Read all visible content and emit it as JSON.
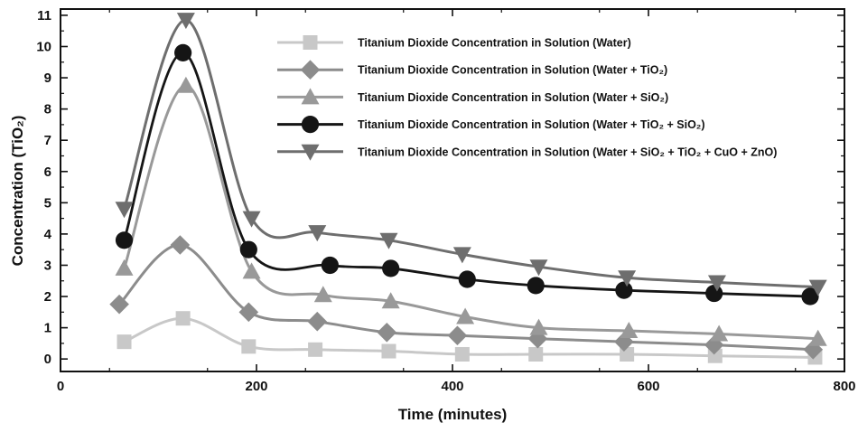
{
  "chart_data": {
    "type": "line",
    "xlabel": "Time (minutes)",
    "ylabel": "Concentration (TiO₂)",
    "xlim": [
      0,
      800
    ],
    "ylim": [
      -0.4,
      11.2
    ],
    "xticks": [
      0,
      200,
      400,
      600,
      800
    ],
    "yticks": [
      0,
      1,
      2,
      3,
      4,
      5,
      6,
      7,
      8,
      9,
      10,
      11
    ],
    "grid": false,
    "legend_position": "top-right",
    "series": [
      {
        "name": "Titanium Dioxide Concentration in Solution (Water)",
        "color": "#c8c8c8",
        "marker": "square",
        "x": [
          65,
          125,
          192,
          260,
          335,
          410,
          485,
          578,
          668,
          770
        ],
        "y": [
          0.55,
          1.3,
          0.4,
          0.3,
          0.25,
          0.15,
          0.15,
          0.15,
          0.1,
          0.05
        ]
      },
      {
        "name": "Titanium Dioxide Concentration in Solution (Water + TiO₂)",
        "color": "#8c8c8c",
        "marker": "diamond",
        "x": [
          60,
          122,
          192,
          262,
          333,
          405,
          487,
          575,
          667,
          768
        ],
        "y": [
          1.75,
          3.65,
          1.5,
          1.2,
          0.85,
          0.75,
          0.65,
          0.55,
          0.45,
          0.3
        ]
      },
      {
        "name": "Titanium Dioxide Concentration in Solution (Water + SiO₂)",
        "color": "#999999",
        "marker": "triangle-up",
        "x": [
          65,
          128,
          195,
          268,
          337,
          413,
          488,
          580,
          672,
          773
        ],
        "y": [
          2.9,
          8.75,
          2.8,
          2.05,
          1.85,
          1.35,
          1.0,
          0.9,
          0.8,
          0.65
        ]
      },
      {
        "name": "Titanium Dioxide Concentration in Solution (Water + TiO₂ + SiO₂)",
        "color": "#151515",
        "marker": "circle",
        "x": [
          65,
          125,
          192,
          275,
          337,
          415,
          485,
          575,
          667,
          765
        ],
        "y": [
          3.8,
          9.8,
          3.5,
          3.0,
          2.9,
          2.55,
          2.35,
          2.2,
          2.1,
          2.0
        ]
      },
      {
        "name": "Titanium Dioxide Concentration in Solution (Water + SiO₂ + TiO₂ + CuO + ZnO)",
        "color": "#6e6e6e",
        "marker": "triangle-down",
        "x": [
          65,
          128,
          195,
          262,
          335,
          410,
          488,
          578,
          670,
          773
        ],
        "y": [
          4.8,
          10.85,
          4.5,
          4.05,
          3.8,
          3.35,
          2.95,
          2.6,
          2.45,
          2.3
        ]
      }
    ]
  }
}
